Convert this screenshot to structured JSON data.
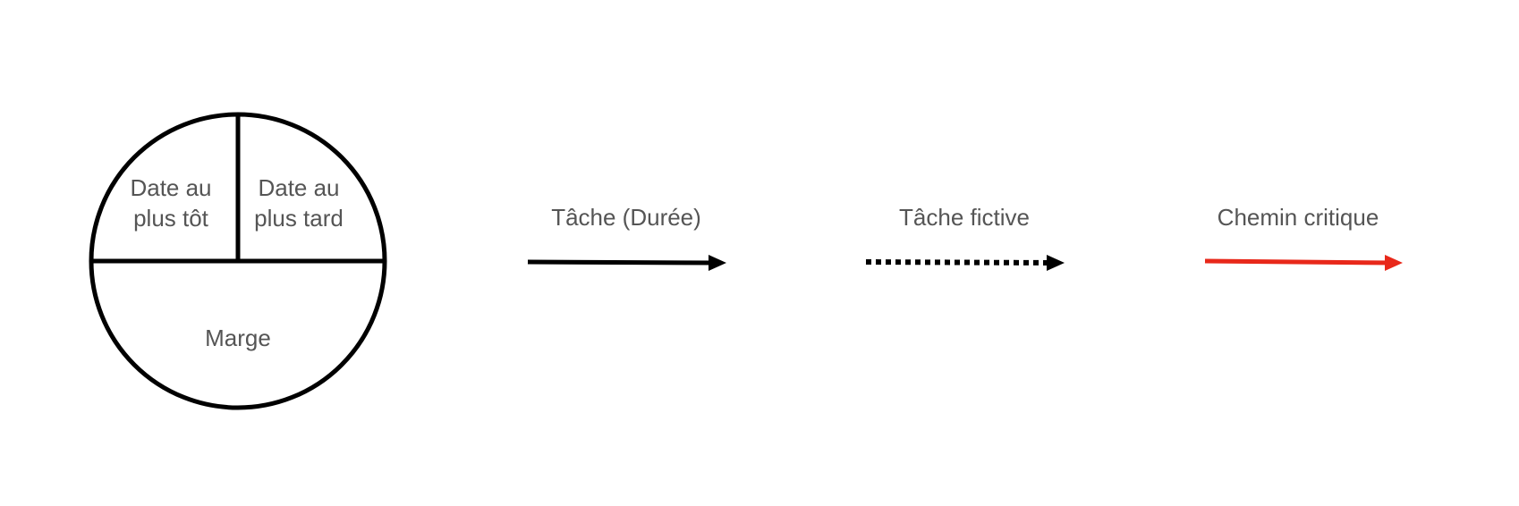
{
  "node_legend": {
    "earliest_line1": "Date au",
    "earliest_line2": "plus tôt",
    "latest_line1": "Date au",
    "latest_line2": "plus tard",
    "slack": "Marge"
  },
  "edge_legend": {
    "task": {
      "label": "Tâche (Durée)",
      "style": "solid",
      "color": "#000000"
    },
    "dummy_task": {
      "label": "Tâche fictive",
      "style": "dotted",
      "color": "#000000"
    },
    "critical_path": {
      "label": "Chemin critique",
      "style": "solid",
      "color": "#e8281a"
    }
  }
}
